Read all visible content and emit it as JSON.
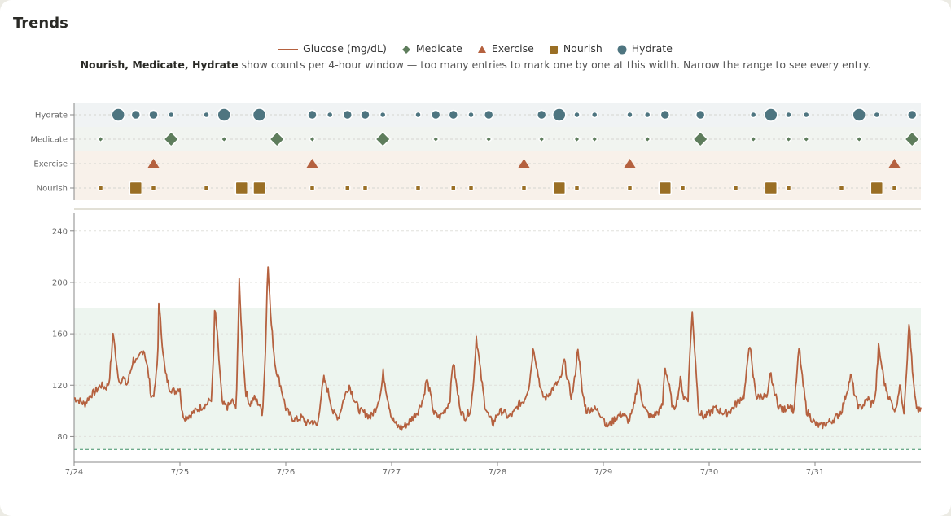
{
  "chart_data": {
    "type": "line",
    "title": "Trends",
    "legend": [
      "Glucose (mg/dL)",
      "Medicate",
      "Exercise",
      "Nourish",
      "Hydrate"
    ],
    "note_bold": "Nourish, Medicate, Hydrate",
    "note_text": " show counts per 4-hour window — too many entries to mark one by one at this width. Narrow the range to see every entry.",
    "event_lanes": [
      "Hydrate",
      "Medicate",
      "Exercise",
      "Nourish"
    ],
    "x_ticks": [
      "7/24",
      "7/25",
      "7/26",
      "7/27",
      "7/28",
      "7/29",
      "7/30",
      "7/31"
    ],
    "x_range_days": [
      0,
      8
    ],
    "ylim": [
      60,
      250
    ],
    "y_ticks": [
      80,
      120,
      160,
      200,
      240
    ],
    "target_range": [
      70,
      180
    ],
    "colors": {
      "glucose": "#b5613f",
      "medicate": "#5e7d5c",
      "exercise": "#b5613f",
      "nourish": "#9a6f25",
      "hydrate": "#4e7580",
      "target_band": "#edf5ef",
      "target_line": "#3f8f67"
    },
    "events": {
      "Hydrate": [
        [
          0.417,
          3
        ],
        [
          0.583,
          2
        ],
        [
          0.75,
          2
        ],
        [
          0.917,
          1
        ],
        [
          1.25,
          1
        ],
        [
          1.417,
          3
        ],
        [
          1.75,
          3
        ],
        [
          2.25,
          2
        ],
        [
          2.417,
          1
        ],
        [
          2.583,
          2
        ],
        [
          2.75,
          2
        ],
        [
          2.917,
          1
        ],
        [
          3.25,
          1
        ],
        [
          3.417,
          2
        ],
        [
          3.583,
          2
        ],
        [
          3.75,
          1
        ],
        [
          3.917,
          2
        ],
        [
          4.417,
          2
        ],
        [
          4.583,
          3
        ],
        [
          4.75,
          1
        ],
        [
          4.917,
          1
        ],
        [
          5.25,
          1
        ],
        [
          5.417,
          1
        ],
        [
          5.583,
          2
        ],
        [
          5.917,
          2
        ],
        [
          6.417,
          1
        ],
        [
          6.583,
          3
        ],
        [
          6.75,
          1
        ],
        [
          6.917,
          1
        ],
        [
          7.417,
          3
        ],
        [
          7.583,
          1
        ],
        [
          7.917,
          2
        ]
      ],
      "Medicate": [
        [
          0.25,
          1
        ],
        [
          0.917,
          3
        ],
        [
          1.417,
          1
        ],
        [
          1.917,
          3
        ],
        [
          2.25,
          1
        ],
        [
          2.917,
          3
        ],
        [
          3.417,
          1
        ],
        [
          3.917,
          1
        ],
        [
          4.417,
          1
        ],
        [
          4.75,
          1
        ],
        [
          4.917,
          1
        ],
        [
          5.417,
          1
        ],
        [
          5.917,
          3
        ],
        [
          6.417,
          1
        ],
        [
          6.75,
          1
        ],
        [
          6.917,
          1
        ],
        [
          7.417,
          1
        ],
        [
          7.917,
          3
        ]
      ],
      "Exercise": [
        [
          0.75,
          1
        ],
        [
          2.25,
          1
        ],
        [
          4.25,
          1
        ],
        [
          5.25,
          1
        ],
        [
          7.75,
          1
        ]
      ],
      "Nourish": [
        [
          0.25,
          1
        ],
        [
          0.583,
          3
        ],
        [
          0.75,
          1
        ],
        [
          1.25,
          1
        ],
        [
          1.583,
          3
        ],
        [
          1.75,
          3
        ],
        [
          2.25,
          1
        ],
        [
          2.583,
          1
        ],
        [
          2.75,
          1
        ],
        [
          3.25,
          1
        ],
        [
          3.583,
          1
        ],
        [
          3.75,
          1
        ],
        [
          4.25,
          1
        ],
        [
          4.583,
          3
        ],
        [
          4.75,
          1
        ],
        [
          5.25,
          1
        ],
        [
          5.583,
          3
        ],
        [
          5.75,
          1
        ],
        [
          6.25,
          1
        ],
        [
          6.583,
          3
        ],
        [
          6.75,
          1
        ],
        [
          7.25,
          1
        ],
        [
          7.583,
          3
        ],
        [
          7.75,
          1
        ]
      ]
    },
    "glucose_series": {
      "name": "Glucose (mg/dL)",
      "points": [
        [
          0,
          110
        ],
        [
          0.05,
          108
        ],
        [
          0.1,
          105
        ],
        [
          0.15,
          112
        ],
        [
          0.2,
          115
        ],
        [
          0.25,
          120
        ],
        [
          0.3,
          118
        ],
        [
          0.33,
          122
        ],
        [
          0.36,
          150
        ],
        [
          0.37,
          163
        ],
        [
          0.4,
          135
        ],
        [
          0.43,
          122
        ],
        [
          0.46,
          126
        ],
        [
          0.5,
          120
        ],
        [
          0.53,
          130
        ],
        [
          0.56,
          140
        ],
        [
          0.6,
          138
        ],
        [
          0.63,
          145
        ],
        [
          0.66,
          148
        ],
        [
          0.7,
          130
        ],
        [
          0.73,
          110
        ],
        [
          0.76,
          115
        ],
        [
          0.79,
          140
        ],
        [
          0.8,
          186
        ],
        [
          0.83,
          155
        ],
        [
          0.86,
          130
        ],
        [
          0.9,
          118
        ],
        [
          0.95,
          115
        ],
        [
          1.0,
          118
        ],
        [
          1.02,
          98
        ],
        [
          1.05,
          95
        ],
        [
          1.1,
          97
        ],
        [
          1.15,
          100
        ],
        [
          1.2,
          103
        ],
        [
          1.25,
          105
        ],
        [
          1.3,
          110
        ],
        [
          1.32,
          150
        ],
        [
          1.33,
          182
        ],
        [
          1.36,
          150
        ],
        [
          1.4,
          105
        ],
        [
          1.45,
          103
        ],
        [
          1.5,
          108
        ],
        [
          1.53,
          100
        ],
        [
          1.55,
          165
        ],
        [
          1.56,
          200
        ],
        [
          1.59,
          150
        ],
        [
          1.62,
          115
        ],
        [
          1.66,
          105
        ],
        [
          1.7,
          110
        ],
        [
          1.75,
          105
        ],
        [
          1.78,
          98
        ],
        [
          1.81,
          150
        ],
        [
          1.83,
          218
        ],
        [
          1.86,
          170
        ],
        [
          1.9,
          135
        ],
        [
          1.95,
          120
        ],
        [
          2.0,
          102
        ],
        [
          2.05,
          95
        ],
        [
          2.1,
          93
        ],
        [
          2.15,
          95
        ],
        [
          2.2,
          90
        ],
        [
          2.25,
          92
        ],
        [
          2.3,
          88
        ],
        [
          2.33,
          110
        ],
        [
          2.36,
          125
        ],
        [
          2.4,
          115
        ],
        [
          2.45,
          98
        ],
        [
          2.5,
          95
        ],
        [
          2.55,
          110
        ],
        [
          2.6,
          120
        ],
        [
          2.65,
          108
        ],
        [
          2.7,
          100
        ],
        [
          2.75,
          98
        ],
        [
          2.8,
          95
        ],
        [
          2.85,
          102
        ],
        [
          2.9,
          115
        ],
        [
          2.92,
          130
        ],
        [
          2.95,
          115
        ],
        [
          3.0,
          95
        ],
        [
          3.05,
          88
        ],
        [
          3.1,
          87
        ],
        [
          3.15,
          90
        ],
        [
          3.2,
          95
        ],
        [
          3.25,
          100
        ],
        [
          3.3,
          110
        ],
        [
          3.33,
          125
        ],
        [
          3.36,
          115
        ],
        [
          3.4,
          98
        ],
        [
          3.45,
          95
        ],
        [
          3.5,
          100
        ],
        [
          3.55,
          108
        ],
        [
          3.58,
          140
        ],
        [
          3.62,
          115
        ],
        [
          3.66,
          98
        ],
        [
          3.7,
          95
        ],
        [
          3.75,
          102
        ],
        [
          3.78,
          130
        ],
        [
          3.8,
          158
        ],
        [
          3.84,
          130
        ],
        [
          3.88,
          105
        ],
        [
          3.92,
          95
        ],
        [
          3.96,
          90
        ],
        [
          4.0,
          98
        ],
        [
          4.05,
          100
        ],
        [
          4.1,
          95
        ],
        [
          4.15,
          98
        ],
        [
          4.2,
          105
        ],
        [
          4.25,
          108
        ],
        [
          4.3,
          120
        ],
        [
          4.34,
          150
        ],
        [
          4.38,
          130
        ],
        [
          4.42,
          112
        ],
        [
          4.46,
          110
        ],
        [
          4.5,
          115
        ],
        [
          4.55,
          120
        ],
        [
          4.6,
          125
        ],
        [
          4.63,
          140
        ],
        [
          4.66,
          125
        ],
        [
          4.7,
          110
        ],
        [
          4.73,
          125
        ],
        [
          4.76,
          150
        ],
        [
          4.8,
          115
        ],
        [
          4.84,
          100
        ],
        [
          4.9,
          102
        ],
        [
          4.95,
          100
        ],
        [
          5.0,
          95
        ],
        [
          5.03,
          88
        ],
        [
          5.07,
          90
        ],
        [
          5.12,
          95
        ],
        [
          5.18,
          98
        ],
        [
          5.24,
          92
        ],
        [
          5.28,
          100
        ],
        [
          5.33,
          125
        ],
        [
          5.36,
          110
        ],
        [
          5.4,
          100
        ],
        [
          5.45,
          95
        ],
        [
          5.5,
          98
        ],
        [
          5.53,
          100
        ],
        [
          5.56,
          105
        ],
        [
          5.58,
          135
        ],
        [
          5.62,
          120
        ],
        [
          5.66,
          100
        ],
        [
          5.7,
          110
        ],
        [
          5.73,
          125
        ],
        [
          5.76,
          110
        ],
        [
          5.8,
          110
        ],
        [
          5.82,
          150
        ],
        [
          5.84,
          176
        ],
        [
          5.87,
          140
        ],
        [
          5.9,
          100
        ],
        [
          5.95,
          95
        ],
        [
          6.0,
          98
        ],
        [
          6.05,
          102
        ],
        [
          6.1,
          100
        ],
        [
          6.15,
          98
        ],
        [
          6.2,
          100
        ],
        [
          6.25,
          105
        ],
        [
          6.3,
          110
        ],
        [
          6.33,
          112
        ],
        [
          6.36,
          135
        ],
        [
          6.38,
          155
        ],
        [
          6.41,
          130
        ],
        [
          6.45,
          110
        ],
        [
          6.5,
          112
        ],
        [
          6.55,
          110
        ],
        [
          6.58,
          130
        ],
        [
          6.6,
          120
        ],
        [
          6.65,
          105
        ],
        [
          6.7,
          100
        ],
        [
          6.75,
          105
        ],
        [
          6.8,
          100
        ],
        [
          6.83,
          130
        ],
        [
          6.85,
          150
        ],
        [
          6.88,
          125
        ],
        [
          6.92,
          100
        ],
        [
          6.96,
          95
        ],
        [
          7.0,
          90
        ],
        [
          7.05,
          88
        ],
        [
          7.1,
          90
        ],
        [
          7.15,
          92
        ],
        [
          7.2,
          95
        ],
        [
          7.25,
          100
        ],
        [
          7.3,
          115
        ],
        [
          7.34,
          128
        ],
        [
          7.38,
          110
        ],
        [
          7.42,
          102
        ],
        [
          7.46,
          105
        ],
        [
          7.5,
          110
        ],
        [
          7.53,
          105
        ],
        [
          7.57,
          110
        ],
        [
          7.6,
          150
        ],
        [
          7.63,
          135
        ],
        [
          7.66,
          120
        ],
        [
          7.7,
          110
        ],
        [
          7.73,
          105
        ],
        [
          7.76,
          100
        ],
        [
          7.8,
          120
        ],
        [
          7.84,
          100
        ],
        [
          7.87,
          140
        ],
        [
          7.89,
          170
        ],
        [
          7.92,
          130
        ],
        [
          7.95,
          105
        ],
        [
          7.98,
          100
        ],
        [
          8.0,
          100
        ]
      ]
    }
  }
}
